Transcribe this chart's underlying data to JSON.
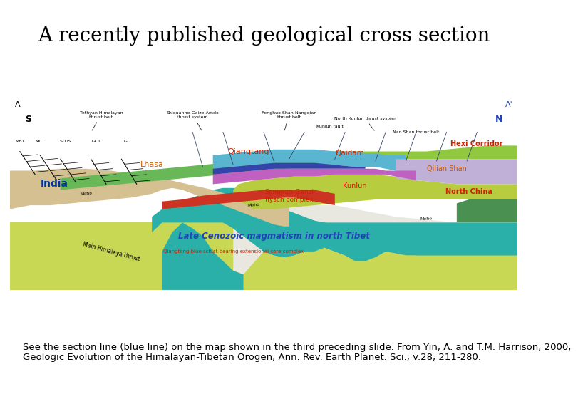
{
  "title": "A recently published geological cross section",
  "title_fontsize": 20,
  "bg_color": "#ffffff",
  "caption_line1": "See the section line (blue line) on the map shown in the third preceding slide. From Yin, A. and T.M. Harrison, 2000,",
  "caption_line2": "Geologic Evolution of the Himalayan-Tibetan Orogen, Ann. Rev. Earth Planet. Sci., v.28, 211-280.",
  "caption_fontsize": 9.5
}
